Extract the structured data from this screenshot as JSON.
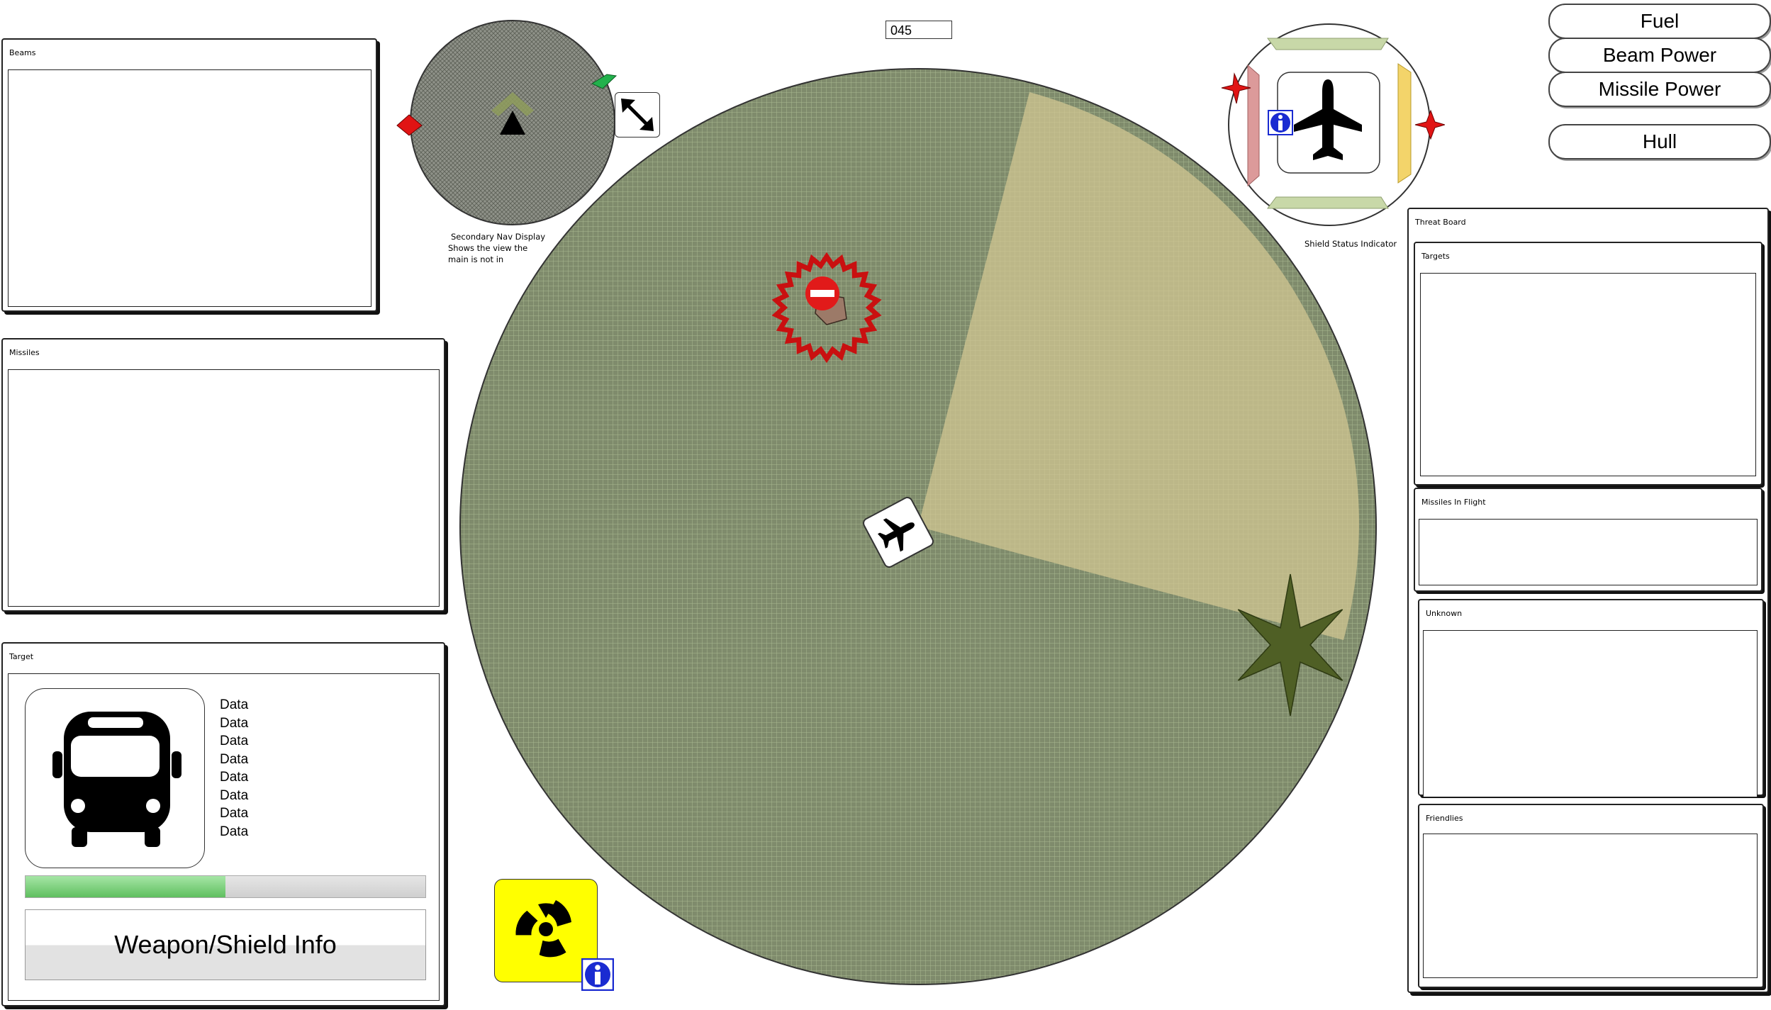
{
  "heading_readout": "045",
  "status_buttons": {
    "fuel": "Fuel",
    "beam_power": "Beam Power",
    "missile_power": "Missile Power",
    "hull": "Hull"
  },
  "panels": {
    "beams": "Beams",
    "missiles": "Missiles",
    "target": "Target",
    "threat_board": "Threat Board",
    "targets": "Targets",
    "missiles_in_flight": "Missiles In Flight",
    "unknown": "Unknown",
    "friendlies": "Friendlies"
  },
  "target": {
    "data_lines": [
      "Data",
      "Data",
      "Data",
      "Data",
      "Data",
      "Data",
      "Data",
      "Data"
    ],
    "progress": 0.5,
    "weapon_shield_label": "Weapon/Shield Info"
  },
  "captions": {
    "secondary_nav_1": "Secondary Nav Display",
    "secondary_nav_2": "Shows the view the",
    "secondary_nav_3": "main is not in",
    "shield_status": "Shield Status Indicator"
  },
  "icons": {
    "bus": "bus-icon",
    "radiation": "radiation-icon",
    "info": "info-icon",
    "airplane": "airplane-icon",
    "expand": "expand-arrows-icon",
    "no_entry": "no-entry-icon",
    "star": "six-point-star-icon"
  },
  "colors": {
    "radar_fill": "#7d8a6b",
    "sensor_cone": "#c9bf8c",
    "hostile_red": "#cc1111",
    "shield_green": "#c8d8a8",
    "shield_red": "#dc9a9a",
    "shield_yellow": "#f3d46a",
    "progress_green": "#7fd07f",
    "radiation_yellow": "#ffff00",
    "info_blue": "#1a2bd1",
    "star_olive": "#4f5f25"
  }
}
